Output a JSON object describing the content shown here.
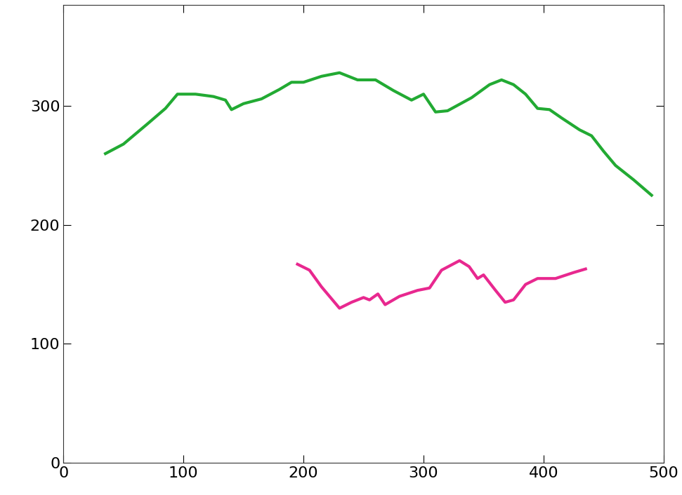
{
  "chart_data": {
    "type": "line",
    "xlim": [
      0,
      500
    ],
    "xticks": [
      0,
      100,
      200,
      300,
      400,
      500
    ],
    "ylim": [
      0,
      385
    ],
    "yticks": [
      0,
      100,
      200,
      300
    ],
    "grid": false,
    "series": [
      {
        "color": "#22aa33",
        "line_style": "solid",
        "x": [
          35,
          50,
          70,
          85,
          95,
          110,
          125,
          135,
          140,
          150,
          165,
          180,
          190,
          200,
          215,
          230,
          245,
          260,
          275,
          290,
          300,
          310,
          320,
          340,
          355,
          365,
          375,
          385,
          395,
          405,
          415,
          430,
          440,
          450,
          460,
          475,
          490
        ],
        "values": [
          260,
          268,
          285,
          298,
          310,
          310,
          308,
          305,
          297,
          302,
          306,
          314,
          320,
          320,
          325,
          328,
          322,
          322,
          313,
          305,
          310,
          295,
          296,
          307,
          318,
          322,
          318,
          310,
          298,
          297,
          290,
          280,
          275,
          262,
          250,
          238,
          225
        ]
      },
      {
        "color": "#e8288f",
        "line_style": "solid",
        "x": [
          195,
          205,
          215,
          230,
          240,
          250,
          255,
          262,
          268,
          280,
          295,
          305,
          315,
          330,
          338,
          345,
          350,
          360,
          368,
          375,
          385,
          395,
          410,
          425,
          435
        ],
        "values": [
          167,
          162,
          148,
          130,
          135,
          139,
          137,
          142,
          133,
          140,
          145,
          147,
          162,
          170,
          165,
          155,
          158,
          145,
          135,
          137,
          150,
          155,
          155,
          160,
          163
        ]
      }
    ]
  }
}
